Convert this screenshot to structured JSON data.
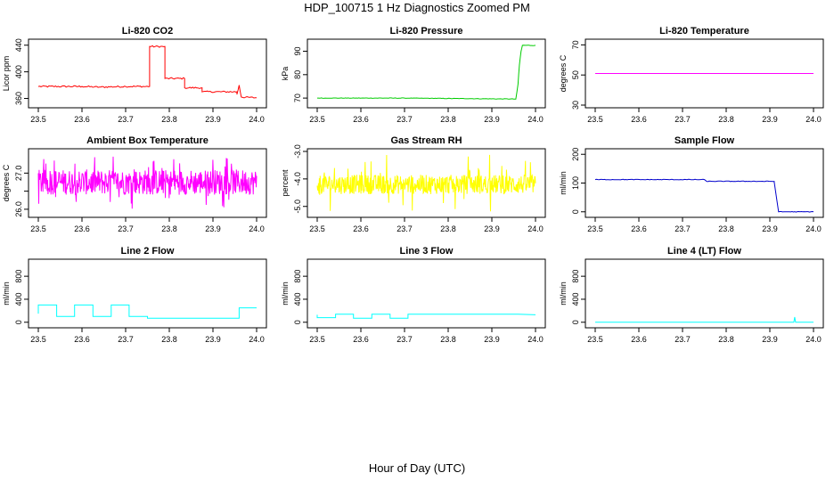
{
  "title": "HDP_100715  1 Hz Diagnostics Zoomed PM",
  "xlabel": "Hour of Day (UTC)",
  "chart_data": [
    {
      "type": "line",
      "title": "Li-820 CO2",
      "ylabel": "Licor ppm",
      "xlim": [
        23.5,
        24.0
      ],
      "xticks": [
        "23.5",
        "23.6",
        "23.7",
        "23.8",
        "23.9",
        "24.0"
      ],
      "ylim": [
        350,
        445
      ],
      "yticks": [
        360,
        400,
        440
      ],
      "color": "#ff0000",
      "noise": 1.2,
      "series": [
        {
          "x": [
            23.5,
            23.6,
            23.64,
            23.7,
            23.755,
            23.755,
            23.79,
            23.79,
            23.835,
            23.835,
            23.875,
            23.875,
            23.955,
            23.955,
            23.96,
            23.965,
            24.0
          ],
          "y": [
            378,
            378,
            377,
            378,
            378,
            438,
            438,
            390,
            390,
            376,
            376,
            370,
            370,
            366,
            380,
            362,
            361
          ]
        }
      ]
    },
    {
      "type": "line",
      "title": "Li-820 Pressure",
      "ylabel": "kPa",
      "xlim": [
        23.5,
        24.0
      ],
      "xticks": [
        "23.5",
        "23.6",
        "23.7",
        "23.8",
        "23.9",
        "24.0"
      ],
      "ylim": [
        67,
        94
      ],
      "yticks": [
        70,
        80,
        90
      ],
      "color": "#00cc00",
      "noise": 0.1,
      "series": [
        {
          "x": [
            23.5,
            23.7,
            23.95,
            23.955,
            23.96,
            23.963,
            23.967,
            23.97,
            24.0
          ],
          "y": [
            70,
            70,
            69.6,
            69.6,
            76,
            84,
            90,
            92.5,
            92.5
          ]
        }
      ]
    },
    {
      "type": "line",
      "title": "Li-820 Temperature",
      "ylabel": "degrees C",
      "xlim": [
        23.5,
        24.0
      ],
      "xticks": [
        "23.5",
        "23.6",
        "23.7",
        "23.8",
        "23.9",
        "24.0"
      ],
      "ylim": [
        30,
        72
      ],
      "yticks": [
        30,
        50,
        70
      ],
      "color": "#ff00ff",
      "noise": 0,
      "series": [
        {
          "x": [
            23.5,
            24.0
          ],
          "y": [
            51,
            51
          ]
        }
      ]
    },
    {
      "type": "line",
      "title": "Ambient Box Temperature",
      "ylabel": "degrees C",
      "xlim": [
        23.5,
        24.0
      ],
      "xticks": [
        "23.5",
        "23.6",
        "23.7",
        "23.8",
        "23.9",
        "24.0"
      ],
      "ylim": [
        25.85,
        27.6
      ],
      "yticks": [
        26.0,
        26.5,
        27.0
      ],
      "ytick_labels": [
        "26.0",
        "",
        "27.0"
      ],
      "color": "#ff00ff",
      "noise_band": [
        26.0,
        27.5
      ],
      "noise_center": 26.75,
      "noise_amp": 0.35,
      "series": [
        {
          "x": [
            23.5,
            24.0
          ],
          "y": [
            26.75,
            26.75
          ]
        }
      ]
    },
    {
      "type": "line",
      "title": "Gas Stream RH",
      "ylabel": "percent",
      "xlim": [
        23.5,
        24.0
      ],
      "xticks": [
        "23.5",
        "23.6",
        "23.7",
        "23.8",
        "23.9",
        "24.0"
      ],
      "ylim": [
        -5.3,
        -3.0
      ],
      "yticks": [
        -5.0,
        -4.0,
        -3.0
      ],
      "ytick_labels": [
        "-5.0",
        "-4.0",
        "-3.0"
      ],
      "color": "#ffff00",
      "noise_band": [
        -5.2,
        -3.1
      ],
      "noise_center": -4.2,
      "noise_amp": 0.35,
      "series": [
        {
          "x": [
            23.5,
            24.0
          ],
          "y": [
            -4.2,
            -4.2
          ]
        }
      ]
    },
    {
      "type": "line",
      "title": "Sample Flow",
      "ylabel": "ml/min",
      "xlim": [
        23.5,
        24.0
      ],
      "xticks": [
        "23.5",
        "23.6",
        "23.7",
        "23.8",
        "23.9",
        "24.0"
      ],
      "ylim": [
        -10,
        210
      ],
      "yticks": [
        0,
        100,
        200
      ],
      "color": "#0000cc",
      "noise": 1.0,
      "series": [
        {
          "x": [
            23.5,
            23.75,
            23.755,
            23.91,
            23.91,
            23.92,
            24.0
          ],
          "y": [
            112,
            112,
            106,
            106,
            104,
            0,
            0
          ]
        }
      ]
    },
    {
      "type": "line",
      "title": "Line 2 Flow",
      "ylabel": "ml/min",
      "xlim": [
        23.5,
        24.0
      ],
      "xticks": [
        "23.5",
        "23.6",
        "23.7",
        "23.8",
        "23.9",
        "24.0"
      ],
      "ylim": [
        -50,
        1050
      ],
      "yticks": [
        0,
        400,
        800
      ],
      "color": "#00ffff",
      "noise": 0,
      "series": [
        {
          "x": [
            23.5,
            23.5,
            23.542,
            23.542,
            23.583,
            23.583,
            23.625,
            23.625,
            23.667,
            23.667,
            23.708,
            23.708,
            23.75,
            23.75,
            23.96,
            23.96,
            24.0
          ],
          "y": [
            150,
            300,
            300,
            100,
            100,
            300,
            300,
            100,
            100,
            300,
            300,
            100,
            100,
            70,
            70,
            250,
            250
          ]
        }
      ]
    },
    {
      "type": "line",
      "title": "Line 3 Flow",
      "ylabel": "ml/min",
      "xlim": [
        23.5,
        24.0
      ],
      "xticks": [
        "23.5",
        "23.6",
        "23.7",
        "23.8",
        "23.9",
        "24.0"
      ],
      "ylim": [
        -50,
        1050
      ],
      "yticks": [
        0,
        400,
        800
      ],
      "color": "#00ffff",
      "noise": 0,
      "series": [
        {
          "x": [
            23.5,
            23.5,
            23.542,
            23.542,
            23.583,
            23.583,
            23.625,
            23.625,
            23.667,
            23.667,
            23.708,
            23.708,
            23.96,
            24.0
          ],
          "y": [
            130,
            80,
            80,
            140,
            140,
            70,
            70,
            140,
            140,
            70,
            70,
            140,
            140,
            130
          ]
        }
      ]
    },
    {
      "type": "line",
      "title": "Line 4 (LT) Flow",
      "ylabel": "ml/min",
      "xlim": [
        23.5,
        24.0
      ],
      "xticks": [
        "23.5",
        "23.6",
        "23.7",
        "23.8",
        "23.9",
        "24.0"
      ],
      "ylim": [
        -50,
        1050
      ],
      "yticks": [
        0,
        400,
        800
      ],
      "color": "#00ffff",
      "noise": 0,
      "series": [
        {
          "x": [
            23.5,
            23.955,
            23.957,
            23.959,
            23.961,
            24.0
          ],
          "y": [
            0,
            0,
            90,
            0,
            0,
            0
          ]
        }
      ]
    }
  ]
}
